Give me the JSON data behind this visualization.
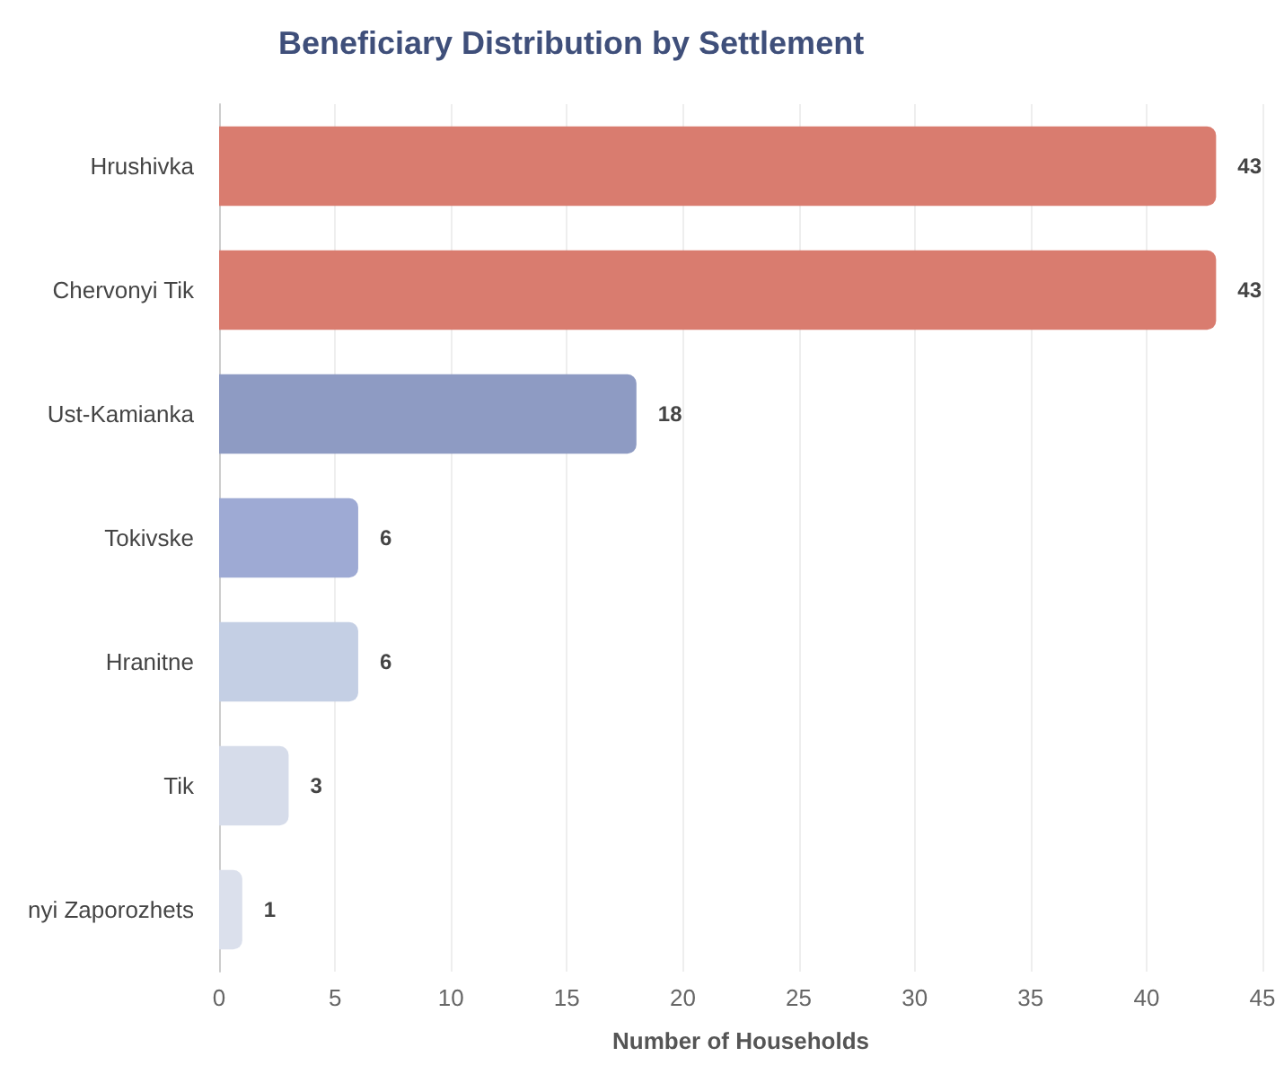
{
  "chart_data": {
    "type": "bar",
    "orientation": "horizontal",
    "title": "Beneficiary Distribution by Settlement",
    "xlabel": "Number of Households",
    "categories": [
      "Hrushivka",
      "Chervonyi Tik",
      "Ust-Kamianka",
      "Tokivske",
      "Hranitne",
      "Tik",
      "nyi Zaporozhets"
    ],
    "values": [
      43,
      43,
      18,
      6,
      6,
      3,
      1
    ],
    "colors": [
      "#d97c6f",
      "#d97c6f",
      "#8e9bc3",
      "#9eaad4",
      "#c4cfe4",
      "#d6dcea",
      "#dbe0ec"
    ],
    "xlim": [
      0,
      45
    ],
    "xticks": [
      0,
      5,
      10,
      15,
      20,
      25,
      30,
      35,
      40,
      45
    ],
    "grid": "x",
    "data_labels": true
  }
}
